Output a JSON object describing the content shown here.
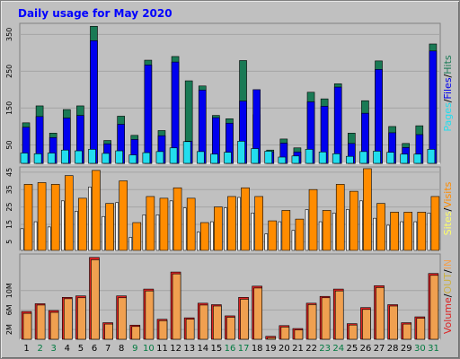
{
  "title": "Daily usage for May 2020",
  "colors": {
    "background": "#c0c0c0",
    "panel": "#c0c0c0",
    "grid": "#a4a4a4",
    "title": "#0000ff",
    "hits": "#1a7a55",
    "files": "#0000ee",
    "pages": "#22ddee",
    "visits": "#ff8c00",
    "sites": "#ffff66",
    "volume": "#dd2222",
    "in": "#f0a050",
    "out": "#ccb040",
    "weekend_label": "#007a40",
    "weekday_label": "#000000"
  },
  "chart_data": [
    {
      "type": "bar",
      "panel": "hits",
      "legend": [
        {
          "name": "Pages",
          "color": "#22ddee"
        },
        {
          "name": "Files",
          "color": "#0000ee"
        },
        {
          "name": "Hits",
          "color": "#1a7a55"
        }
      ],
      "y_ticks": [
        "350",
        "250",
        "150",
        "50"
      ],
      "categories": [
        "1",
        "2",
        "3",
        "4",
        "5",
        "6",
        "7",
        "8",
        "9",
        "10",
        "11",
        "12",
        "13",
        "14",
        "15",
        "16",
        "17",
        "18",
        "19",
        "20",
        "21",
        "22",
        "23",
        "24",
        "25",
        "26",
        "27",
        "28",
        "29",
        "30",
        "31"
      ],
      "series": [
        {
          "name": "Hits",
          "values": [
            110,
            156,
            82,
            146,
            156,
            372,
            62,
            128,
            76,
            280,
            89,
            290,
            224,
            210,
            130,
            121,
            279,
            132,
            36,
            66,
            42,
            193,
            175,
            216,
            82,
            170,
            278,
            100,
            54,
            102,
            324
          ]
        },
        {
          "name": "Files",
          "values": [
            98,
            127,
            70,
            123,
            130,
            333,
            53,
            106,
            65,
            267,
            75,
            275,
            60,
            199,
            124,
            109,
            169,
            200,
            31,
            55,
            31,
            167,
            155,
            207,
            54,
            136,
            255,
            83,
            43,
            78,
            305
          ]
        },
        {
          "name": "Pages",
          "values": [
            28,
            26,
            28,
            36,
            34,
            38,
            27,
            34,
            23,
            29,
            32,
            42,
            59,
            32,
            25,
            30,
            60,
            40,
            33,
            17,
            20,
            38,
            31,
            26,
            19,
            32,
            33,
            30,
            25,
            25,
            38
          ]
        }
      ]
    },
    {
      "type": "bar",
      "panel": "visits",
      "legend": [
        {
          "name": "Sites",
          "color": "#ffff66"
        },
        {
          "name": "Visits",
          "color": "#ff8c00"
        }
      ],
      "y_ticks": [
        "45",
        "35",
        "25",
        "15",
        "5"
      ],
      "categories": [
        "1",
        "2",
        "3",
        "4",
        "5",
        "6",
        "7",
        "8",
        "9",
        "10",
        "11",
        "12",
        "13",
        "14",
        "15",
        "16",
        "17",
        "18",
        "19",
        "20",
        "21",
        "22",
        "23",
        "24",
        "25",
        "26",
        "27",
        "28",
        "29",
        "30",
        "31"
      ],
      "series": [
        {
          "name": "Visits",
          "values": [
            38,
            39,
            38,
            43,
            30,
            46,
            27,
            40,
            16,
            31,
            30,
            36,
            30,
            16,
            25,
            31,
            36,
            31,
            17,
            23,
            18,
            35,
            23,
            38,
            34,
            47,
            27,
            22,
            22,
            22,
            31
          ]
        },
        {
          "name": "Sites",
          "values": [
            13,
            17,
            14,
            29,
            23,
            37,
            20,
            28,
            8,
            21,
            21,
            29,
            25,
            11,
            17,
            25,
            31,
            22,
            10,
            17,
            12,
            24,
            17,
            22,
            24,
            29,
            19,
            15,
            17,
            17,
            22
          ]
        }
      ]
    },
    {
      "type": "bar",
      "panel": "volume",
      "legend": [
        {
          "name": "Volume",
          "color": "#dd2222"
        },
        {
          "name": "OUT",
          "color": "#ccb040"
        },
        {
          "name": "IN",
          "color": "#f0a050"
        }
      ],
      "y_ticks": [
        "10M",
        "6M",
        "2M"
      ],
      "categories": [
        "1",
        "2",
        "3",
        "4",
        "5",
        "6",
        "7",
        "8",
        "9",
        "10",
        "11",
        "12",
        "13",
        "14",
        "15",
        "16",
        "17",
        "18",
        "19",
        "20",
        "21",
        "22",
        "23",
        "24",
        "25",
        "26",
        "27",
        "28",
        "29",
        "30",
        "31"
      ],
      "series": [
        {
          "name": "Volume",
          "values": [
            5.7,
            7.3,
            5.9,
            8.6,
            8.9,
            16.8,
            3.4,
            8.9,
            2.9,
            10.3,
            4.1,
            13.8,
            4.4,
            7.4,
            7.1,
            4.8,
            8.6,
            10.9,
            0.6,
            2.8,
            2.2,
            7.4,
            8.8,
            10.3,
            3.2,
            6.5,
            11.0,
            7.1,
            3.4,
            4.6,
            13.5
          ]
        },
        {
          "name": "IN",
          "values": [
            5.5,
            7.2,
            5.7,
            8.5,
            8.7,
            16.5,
            3.3,
            8.7,
            2.8,
            10.1,
            4.0,
            13.6,
            4.3,
            7.2,
            7.0,
            4.7,
            8.4,
            10.7,
            0.5,
            2.7,
            2.1,
            7.3,
            8.7,
            10.1,
            3.1,
            6.3,
            10.8,
            7.0,
            3.3,
            4.5,
            13.3
          ]
        },
        {
          "name": "OUT",
          "values": [
            0,
            0,
            0,
            0,
            0,
            0,
            0,
            0,
            0,
            0,
            0,
            0,
            0,
            0,
            0,
            0,
            0,
            0,
            0,
            0,
            0,
            0,
            0,
            0,
            0,
            0,
            0,
            0,
            0,
            0,
            0
          ]
        }
      ]
    }
  ],
  "weekend_days": [
    2,
    3,
    9,
    10,
    16,
    17,
    23,
    24,
    30,
    31
  ],
  "legend_separator": "/"
}
